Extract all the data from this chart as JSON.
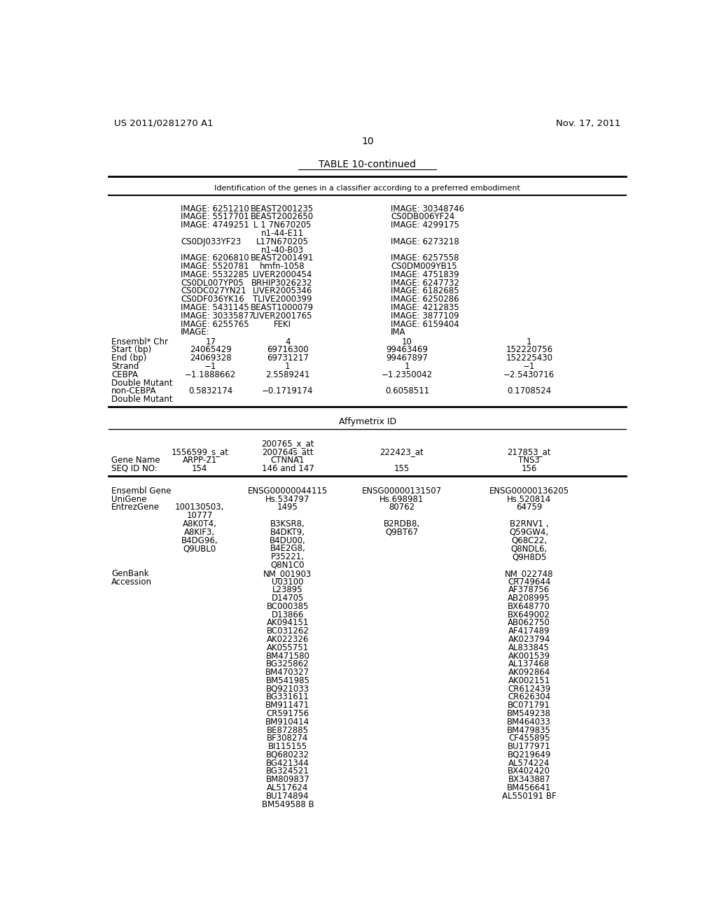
{
  "header_left": "US 2011/0281270 A1",
  "header_right": "Nov. 17, 2011",
  "page_number": "10",
  "table_title": "TABLE 10-continued",
  "subtitle": "Identification of the genes in a classifier according to a preferred embodiment",
  "bg_color": "#ffffff",
  "text_color": "#000000",
  "font_size": 8.5,
  "header_font_size": 11,
  "title_font_size": 10,
  "lines_col1": [
    "IMAGE: 6251210",
    "IMAGE: 5517701",
    "IMAGE: 4749251",
    "",
    "CS0DJ033YF23",
    "",
    "IMAGE: 6206810",
    "IMAGE: 5520781",
    "IMAGE: 5532285",
    "CS0DL007YP05",
    "CS0DC027YN21",
    "CS0DF036YK16",
    "IMAGE: 5431145",
    "IMAGE: 30335877",
    "IMAGE: 6255765",
    "IMAGE:"
  ],
  "lines_col2": [
    "BEAST2001235",
    "BEAST2002650",
    "L 1 7N670205",
    "n1-44-E11",
    "L17N670205",
    "n1-40-B03",
    "BEAST2001491",
    "hmfn-1058",
    "LIVER2000454",
    "BRHIP3026232",
    "LIVER2005346",
    "TLIVE2000399",
    "BEAST1000079",
    "LIVER2001765",
    "FEKI",
    ""
  ],
  "lines_col3": [
    "IMAGE: 30348746",
    "CS0DB006YF24",
    "IMAGE: 4299175",
    "",
    "IMAGE: 6273218",
    "",
    "IMAGE: 6257558",
    "CS0DM009YB15",
    "IMAGE: 4751839",
    "IMAGE: 6247732",
    "IMAGE: 6182685",
    "IMAGE: 6250286",
    "IMAGE: 4212835",
    "IMAGE: 3877109",
    "IMAGE: 6159404",
    "IMA"
  ],
  "acc_entries_col2": [
    "L23895",
    "D14705",
    "BC000385",
    "D13866",
    "AK094151",
    "BC031262",
    "AK022326",
    "AK055751",
    "BM471580",
    "BG325862",
    "BM470327",
    "BM541985",
    "BQ921033",
    "BG331611",
    "BM911471",
    "CR591756",
    "BM910414",
    "BE872885",
    "BF308274",
    "BI115155",
    "BQ680232",
    "BG421344",
    "BG324521",
    "BM809837",
    "AL517624",
    "BU174894",
    "BM549588 B"
  ],
  "acc_entries_col4": [
    "AF378756",
    "AB208995",
    "BX648770",
    "BX649002",
    "AB062750",
    "AF417489",
    "AK023794",
    "AL833845",
    "AK001539",
    "AL137468",
    "AK092864",
    "AK002151",
    "CR612439",
    "CR626304",
    "BC071791",
    "BM549238",
    "BM464033",
    "BM479835",
    "CF455895",
    "BU177971",
    "BQ219649",
    "AL574224",
    "BX402420",
    "BX343887",
    "BM456641",
    "AL550191 BF"
  ]
}
